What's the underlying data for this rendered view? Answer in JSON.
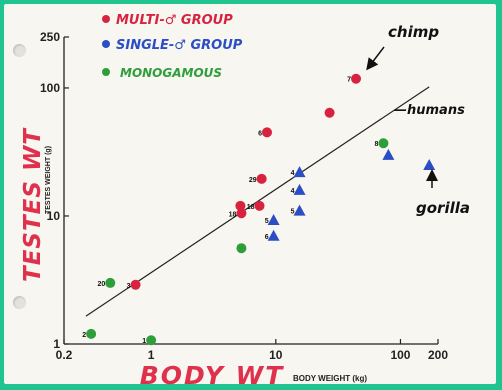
{
  "chart_data": {
    "type": "scatter",
    "xlabel": "BODY WEIGHT (kg)",
    "ylabel": "TESTES WEIGHT (g)",
    "x_scale": "log",
    "y_scale": "log",
    "xlim": [
      0.2,
      200
    ],
    "ylim": [
      1,
      250
    ],
    "x_ticks": [
      {
        "value": 0.2,
        "label": "0.2"
      },
      {
        "value": 1,
        "label": "1"
      },
      {
        "value": 10,
        "label": "10"
      },
      {
        "value": 100,
        "label": "100"
      },
      {
        "value": 200,
        "label": "200"
      }
    ],
    "y_ticks": [
      {
        "value": 1,
        "label": "1"
      },
      {
        "value": 10,
        "label": "10"
      },
      {
        "value": 100,
        "label": "100"
      },
      {
        "value": 250,
        "label": "250"
      }
    ],
    "grid": false,
    "legend_position": "top-left",
    "series": [
      {
        "name": "MULTI-♂ GROUP",
        "color": "#d8233f",
        "marker": "circle",
        "points": [
          {
            "x": 0.75,
            "y": 2.9,
            "label": "3"
          },
          {
            "x": 5.2,
            "y": 12,
            "label": ""
          },
          {
            "x": 5.3,
            "y": 10.5,
            "label": "18"
          },
          {
            "x": 7.4,
            "y": 12,
            "label": "18"
          },
          {
            "x": 7.7,
            "y": 19.5,
            "label": "29"
          },
          {
            "x": 8.5,
            "y": 45,
            "label": "6"
          },
          {
            "x": 27,
            "y": 64,
            "label": ""
          },
          {
            "x": 44,
            "y": 118,
            "label": "7"
          }
        ]
      },
      {
        "name": "SINGLE-♂ GROUP",
        "color": "#2b4ec4",
        "marker": "triangle",
        "points": [
          {
            "x": 9.6,
            "y": 9.3,
            "label": "5"
          },
          {
            "x": 9.6,
            "y": 7,
            "label": "6"
          },
          {
            "x": 15.5,
            "y": 22,
            "label": "4"
          },
          {
            "x": 15.5,
            "y": 16,
            "label": "4"
          },
          {
            "x": 15.5,
            "y": 11,
            "label": "5"
          },
          {
            "x": 80,
            "y": 30,
            "label": ""
          },
          {
            "x": 170,
            "y": 25,
            "label": ""
          }
        ]
      },
      {
        "name": "MONOGAMOUS",
        "color": "#2e9e3a",
        "marker": "circle",
        "points": [
          {
            "x": 0.33,
            "y": 1.2,
            "label": "2"
          },
          {
            "x": 0.47,
            "y": 3,
            "label": "20"
          },
          {
            "x": 1,
            "y": 1.07,
            "label": "1"
          },
          {
            "x": 5.3,
            "y": 5.6,
            "label": ""
          },
          {
            "x": 73,
            "y": 37,
            "label": "8"
          }
        ]
      }
    ],
    "trend_line": [
      {
        "x": 0.3,
        "y": 1.65
      },
      {
        "x": 170,
        "y": 102
      }
    ],
    "annotations": [
      {
        "text": "chimp",
        "target": {
          "x": 44,
          "y": 118
        }
      },
      {
        "text": "—humans",
        "target": {
          "x": 73,
          "y": 37
        }
      },
      {
        "text": "gorilla",
        "target": {
          "x": 170,
          "y": 25
        }
      }
    ],
    "handwritten_axis_labels": {
      "x": "BODY WT",
      "y": "TESTES WT"
    }
  }
}
